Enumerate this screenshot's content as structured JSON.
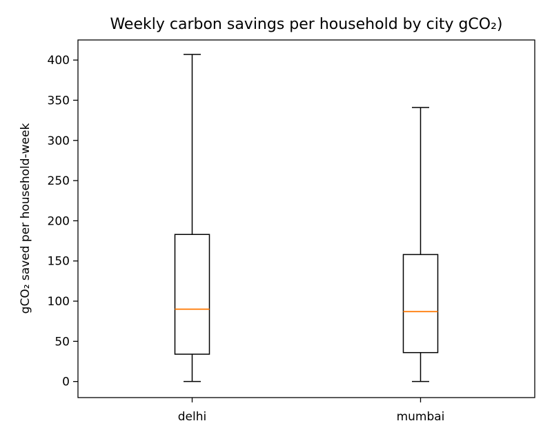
{
  "chart_data": {
    "type": "boxplot",
    "title": "Weekly carbon savings per household by city gCO₂)",
    "xlabel": "",
    "ylabel": "gCO₂ saved per household-week",
    "ylim": [
      -20,
      425
    ],
    "yticks": [
      0,
      50,
      100,
      150,
      200,
      250,
      300,
      350,
      400
    ],
    "categories": [
      "delhi",
      "mumbai"
    ],
    "boxes": [
      {
        "category": "delhi",
        "whisker_low": 0,
        "q1": 34,
        "median": 90,
        "q3": 183,
        "whisker_high": 407
      },
      {
        "category": "mumbai",
        "whisker_low": 0,
        "q1": 36,
        "median": 87,
        "q3": 158,
        "whisker_high": 341
      }
    ],
    "grid": false,
    "colors": {
      "box": "#000000",
      "median": "#ff7f0e",
      "whisker": "#000000"
    }
  }
}
